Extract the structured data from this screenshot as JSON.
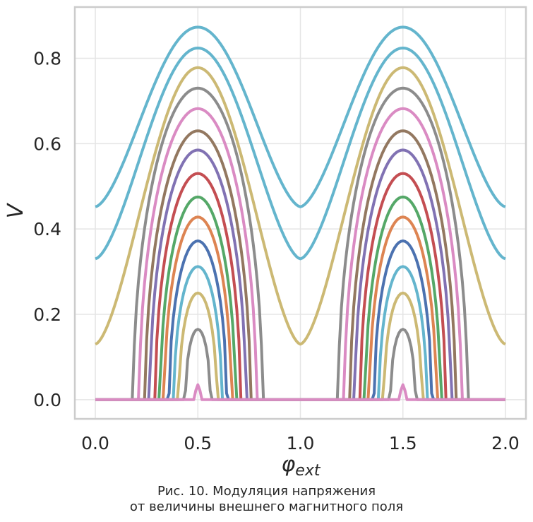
{
  "caption": {
    "line1": "Рис. 10. Модуляция напряжения",
    "line2": "от величины внешнего магнитного поля"
  },
  "chart_data": {
    "type": "line",
    "xlabel": "φ_ext",
    "ylabel": "V",
    "xlim": [
      -0.1,
      2.1
    ],
    "ylim": [
      -0.045,
      0.92
    ],
    "xticks": [
      "0.0",
      "0.5",
      "1.0",
      "1.5",
      "2.0"
    ],
    "yticks": [
      "0.0",
      "0.2",
      "0.4",
      "0.6",
      "0.8"
    ],
    "grid": true,
    "legend": "none",
    "series": [
      {
        "color": "#64b5cd",
        "peak": 0.873,
        "min": 0.452
      },
      {
        "color": "#64b5cd",
        "peak": 0.824,
        "min": 0.33
      },
      {
        "color": "#ccb974",
        "peak": 0.778,
        "min": 0.13
      },
      {
        "color": "#8c8c8c",
        "peak": 0.73,
        "min": 0.0
      },
      {
        "color": "#da8bc3",
        "peak": 0.682,
        "min": 0.0
      },
      {
        "color": "#937860",
        "peak": 0.63,
        "min": 0.0
      },
      {
        "color": "#8172b3",
        "peak": 0.585,
        "min": 0.0
      },
      {
        "color": "#c44e52",
        "peak": 0.53,
        "min": 0.0
      },
      {
        "color": "#55a868",
        "peak": 0.475,
        "min": 0.0
      },
      {
        "color": "#dd8452",
        "peak": 0.428,
        "min": 0.0
      },
      {
        "color": "#4c72b0",
        "peak": 0.372,
        "min": 0.0
      },
      {
        "color": "#64b5cd",
        "peak": 0.312,
        "min": 0.0
      },
      {
        "color": "#ccb974",
        "peak": 0.25,
        "min": 0.0
      },
      {
        "color": "#8c8c8c",
        "peak": 0.165,
        "min": 0.0
      },
      {
        "color": "#da8bc3",
        "peak": 0.035,
        "min": 0.0
      }
    ]
  }
}
